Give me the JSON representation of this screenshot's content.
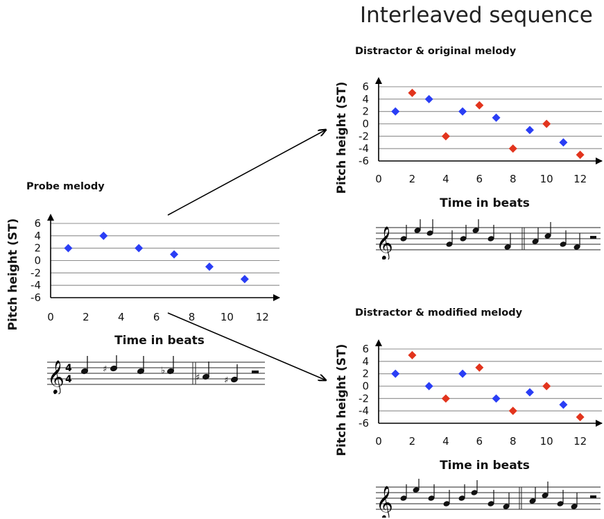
{
  "figure": {
    "title": "Interleaved sequence",
    "colors": {
      "probe": "#2a3ef5",
      "distractor": "#e2341d",
      "grid": "#8c8c8c",
      "axis": "#000000"
    }
  },
  "chart_data": [
    {
      "type": "scatter",
      "title": "Probe melody",
      "xlabel": "Time in beats",
      "ylabel": "Pitch height (ST)",
      "xlim": [
        0,
        12.5
      ],
      "ylim": [
        -6,
        6
      ],
      "xticks": [
        0,
        2,
        4,
        6,
        8,
        10,
        12
      ],
      "yticks": [
        6,
        4,
        2,
        0,
        -2,
        -4,
        -6
      ],
      "grid": true,
      "series": [
        {
          "color": "#2a3ef5",
          "x": [
            1,
            3,
            5,
            7,
            9,
            11
          ],
          "y": [
            2,
            4,
            2,
            1,
            -1,
            -3
          ]
        }
      ]
    },
    {
      "type": "scatter",
      "title": "Distractor & original melody",
      "xlabel": "Time in beats",
      "ylabel": "Pitch height (ST)",
      "xlim": [
        0,
        12.5
      ],
      "ylim": [
        -6,
        6
      ],
      "xticks": [
        0,
        2,
        4,
        6,
        8,
        10,
        12
      ],
      "yticks": [
        6,
        4,
        2,
        0,
        -2,
        -4,
        -6
      ],
      "grid": true,
      "series": [
        {
          "color": "#2a3ef5",
          "x": [
            1,
            3,
            5,
            7,
            9,
            11
          ],
          "y": [
            2,
            4,
            2,
            1,
            -1,
            -3
          ]
        },
        {
          "color": "#e2341d",
          "x": [
            2,
            4,
            6,
            8,
            10,
            12
          ],
          "y": [
            5,
            -2,
            3,
            -4,
            0,
            -5
          ]
        }
      ]
    },
    {
      "type": "scatter",
      "title": "Distractor & modified melody",
      "xlabel": "Time in beats",
      "ylabel": "Pitch height (ST)",
      "xlim": [
        0,
        12.5
      ],
      "ylim": [
        -6,
        6
      ],
      "xticks": [
        0,
        2,
        4,
        6,
        8,
        10,
        12
      ],
      "yticks": [
        6,
        4,
        2,
        0,
        -2,
        -4,
        -6
      ],
      "grid": true,
      "series": [
        {
          "color": "#2a3ef5",
          "x": [
            1,
            3,
            5,
            7,
            9,
            11
          ],
          "y": [
            2,
            0,
            2,
            -2,
            -1,
            -3
          ]
        },
        {
          "color": "#e2341d",
          "x": [
            2,
            4,
            6,
            8,
            10,
            12
          ],
          "y": [
            5,
            -2,
            3,
            -4,
            0,
            -5
          ]
        }
      ]
    }
  ],
  "scores": [
    {
      "time_signature": [
        "4",
        "4"
      ],
      "notes": [
        "B",
        "C#",
        "B",
        "Bb",
        "G#",
        "F#"
      ],
      "rest": "half rest"
    },
    {
      "notes": [
        "B",
        "D",
        "C#",
        "G",
        "B",
        "D",
        "C#",
        "Bb",
        "F",
        "G#",
        "B",
        "F#",
        "E"
      ]
    },
    {
      "notes": [
        "B",
        "D",
        "B",
        "G",
        "B",
        "C",
        "G",
        "F",
        "G#",
        "A",
        "F#",
        "E"
      ]
    }
  ]
}
